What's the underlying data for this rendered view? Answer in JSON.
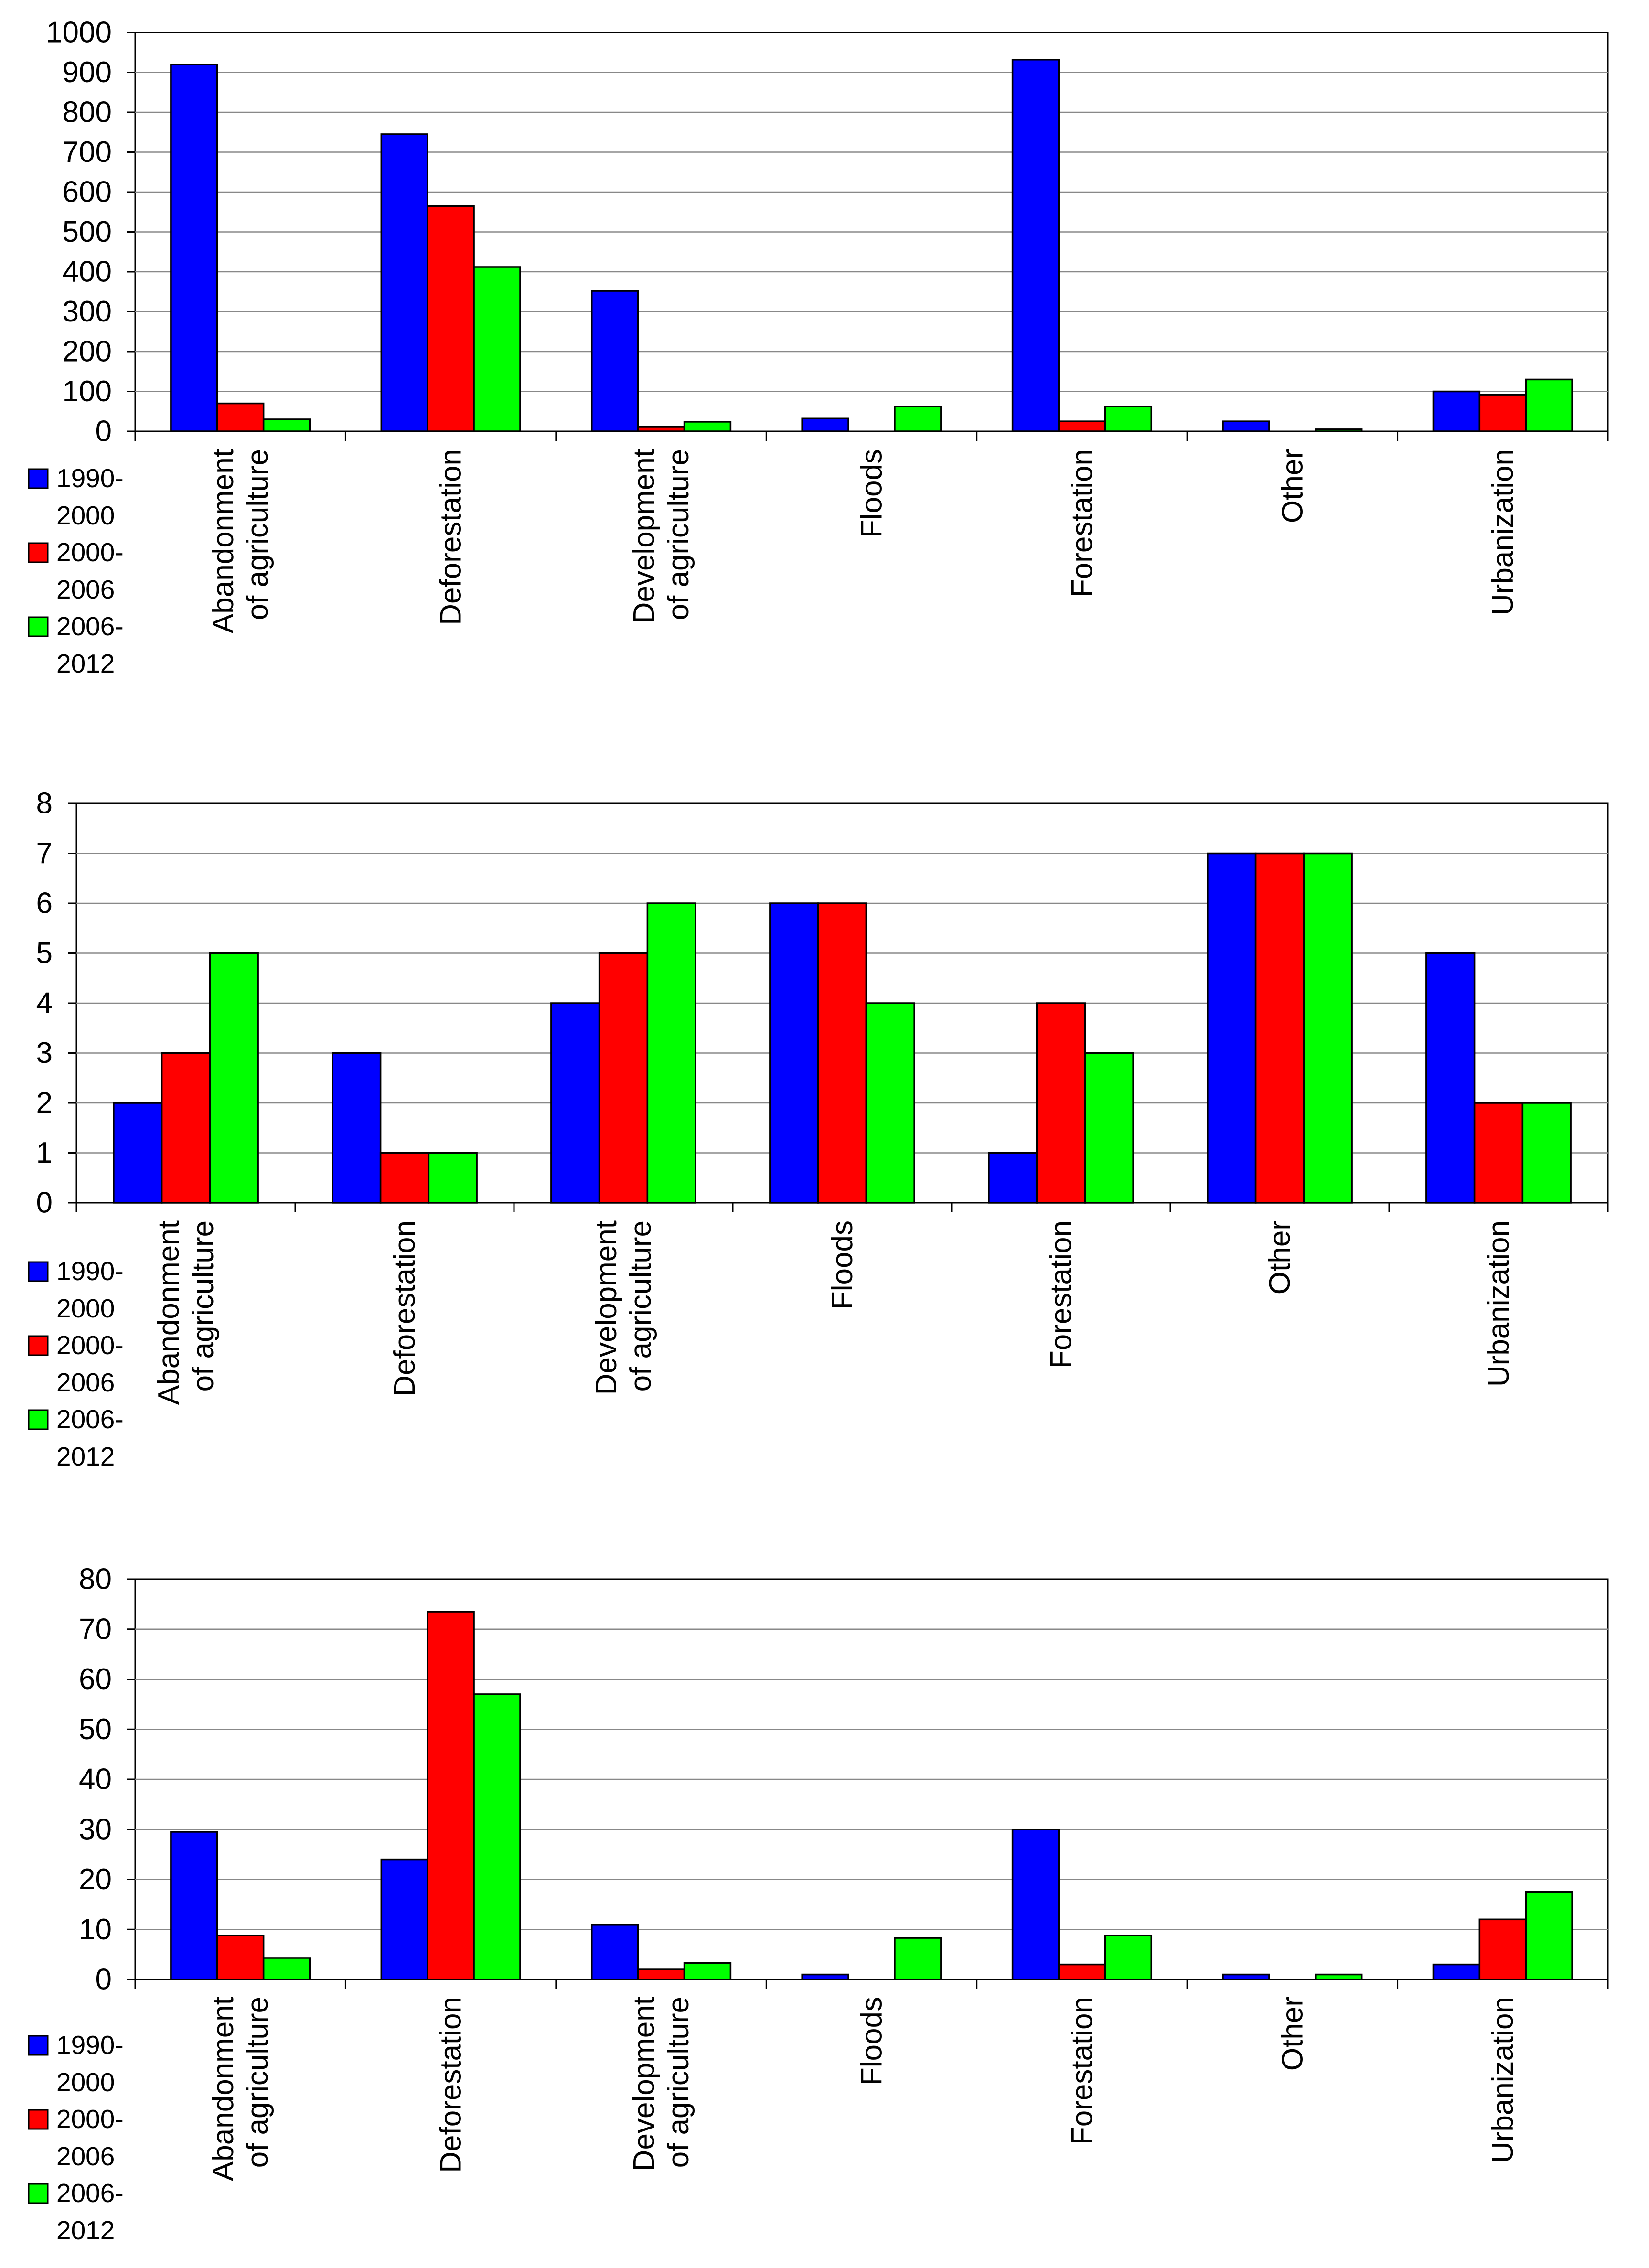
{
  "chart_data": [
    {
      "type": "bar",
      "title": "",
      "xlabel": "",
      "ylabel": "",
      "ylim": [
        0,
        1000
      ],
      "yticks": [
        0,
        100,
        200,
        300,
        400,
        500,
        600,
        700,
        800,
        900,
        1000
      ],
      "grid": true,
      "legend_position": "bottom-left",
      "categories": [
        [
          "Abandonment",
          "of agriculture"
        ],
        [
          "Deforestation"
        ],
        [
          "Development",
          "of agriculture"
        ],
        [
          "Floods"
        ],
        [
          "Forestation"
        ],
        [
          "Other"
        ],
        [
          "Urbanization"
        ]
      ],
      "series": [
        {
          "name": [
            "1990-",
            "2000"
          ],
          "color": "#0000ff",
          "values": [
            920,
            745,
            352,
            32,
            932,
            25,
            100
          ]
        },
        {
          "name": [
            "2000-",
            "2006"
          ],
          "color": "#ff0000",
          "values": [
            70,
            565,
            12,
            0,
            25,
            0,
            92
          ]
        },
        {
          "name": [
            "2006-",
            "2012"
          ],
          "color": "#00ff00",
          "values": [
            30,
            412,
            24,
            62,
            62,
            5,
            130
          ]
        }
      ]
    },
    {
      "type": "bar",
      "title": "",
      "xlabel": "",
      "ylabel": "",
      "ylim": [
        0,
        8
      ],
      "yticks": [
        0,
        1,
        2,
        3,
        4,
        5,
        6,
        7,
        8
      ],
      "grid": true,
      "legend_position": "bottom-left",
      "categories": [
        [
          "Abandonment",
          "of agriculture"
        ],
        [
          "Deforestation"
        ],
        [
          "Development",
          "of agriculture"
        ],
        [
          "Floods"
        ],
        [
          "Forestation"
        ],
        [
          "Other"
        ],
        [
          "Urbanization"
        ]
      ],
      "series": [
        {
          "name": [
            "1990-",
            "2000"
          ],
          "color": "#0000ff",
          "values": [
            2,
            3,
            4,
            6,
            1,
            7,
            5
          ]
        },
        {
          "name": [
            "2000-",
            "2006"
          ],
          "color": "#ff0000",
          "values": [
            3,
            1,
            5,
            6,
            4,
            7,
            2
          ]
        },
        {
          "name": [
            "2006-",
            "2012"
          ],
          "color": "#00ff00",
          "values": [
            5,
            1,
            6,
            4,
            3,
            7,
            2
          ]
        }
      ]
    },
    {
      "type": "bar",
      "title": "",
      "xlabel": "",
      "ylabel": "",
      "ylim": [
        0,
        80
      ],
      "yticks": [
        0,
        10,
        20,
        30,
        40,
        50,
        60,
        70,
        80
      ],
      "grid": true,
      "legend_position": "bottom-left",
      "categories": [
        [
          "Abandonment",
          "of agriculture"
        ],
        [
          "Deforestation"
        ],
        [
          "Development",
          "of agriculture"
        ],
        [
          "Floods"
        ],
        [
          "Forestation"
        ],
        [
          "Other"
        ],
        [
          "Urbanization"
        ]
      ],
      "series": [
        {
          "name": [
            "1990-",
            "2000"
          ],
          "color": "#0000ff",
          "values": [
            29.5,
            24,
            11,
            1,
            30,
            1,
            3
          ]
        },
        {
          "name": [
            "2000-",
            "2006"
          ],
          "color": "#ff0000",
          "values": [
            8.8,
            73.5,
            2,
            0,
            3,
            0,
            12
          ]
        },
        {
          "name": [
            "2006-",
            "2012"
          ],
          "color": "#00ff00",
          "values": [
            4.3,
            57,
            3.3,
            8.3,
            8.8,
            1,
            17.5
          ]
        }
      ]
    }
  ]
}
